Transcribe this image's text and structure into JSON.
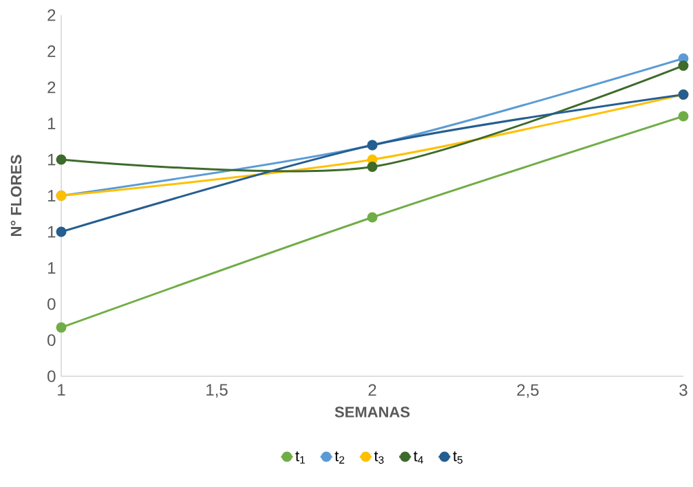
{
  "chart_data": {
    "type": "line",
    "xlabel": "SEMANAS",
    "ylabel": "N° FLORES",
    "x": [
      1,
      2,
      3
    ],
    "xlim": [
      1,
      3
    ],
    "xticks": [
      1,
      {
        "value": 1.5,
        "label": "1,5"
      },
      2,
      {
        "value": 2.5,
        "label": "2,5"
      },
      3
    ],
    "ylim": [
      0,
      2
    ],
    "yticks": [
      0,
      {
        "value": 0.2,
        "label": "0"
      },
      {
        "value": 0.4,
        "label": "0"
      },
      {
        "value": 0.6,
        "label": "1"
      },
      {
        "value": 0.8,
        "label": "1"
      },
      {
        "value": 1.0,
        "label": "1"
      },
      {
        "value": 1.2,
        "label": "1"
      },
      {
        "value": 1.4,
        "label": "1"
      },
      {
        "value": 1.6,
        "label": "2"
      },
      {
        "value": 1.8,
        "label": "2"
      },
      2
    ],
    "series": [
      {
        "name": "t$_{1}$",
        "color": "#70ad47",
        "values": [
          0.27,
          0.88,
          1.44
        ]
      },
      {
        "name": "t$_{2}$",
        "color": "#5b9bd5",
        "values": [
          1.0,
          1.28,
          1.76
        ]
      },
      {
        "name": "t$_{3}$",
        "color": "#ffc000",
        "values": [
          1.0,
          1.2,
          1.56
        ]
      },
      {
        "name": "t$_{4}$",
        "color": "#3e6b2b",
        "values": [
          1.2,
          1.16,
          1.72
        ]
      },
      {
        "name": "t$_{5}$",
        "color": "#255e91",
        "values": [
          0.8,
          1.28,
          1.56
        ]
      }
    ],
    "grid": false,
    "legend": "bottom",
    "marker": "circle",
    "line_style": "solid"
  }
}
